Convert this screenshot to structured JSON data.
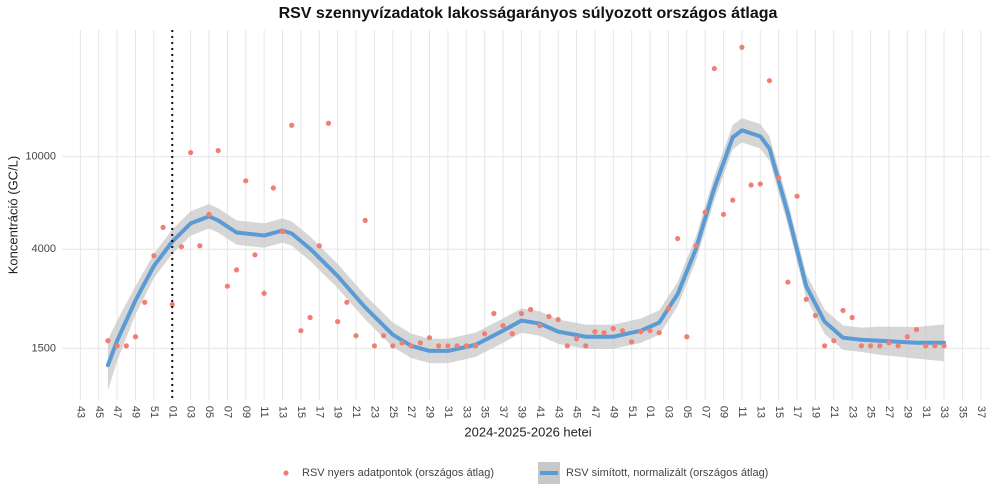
{
  "chart_data": {
    "type": "scatter",
    "title": "RSV szennyvízadatok lakosságarányos súlyozott országos átlaga",
    "x_label": "2024-2025-2026 hetei",
    "y_label": "Koncentráció (GC/L)",
    "log_y": true,
    "grid": true,
    "legend_position": "bottom",
    "vline_x": 10,
    "xlim": [
      -2,
      99
    ],
    "ylim": [
      900,
      35000
    ],
    "yticks": [
      1500,
      4000,
      10000
    ],
    "xticks": [
      {
        "value": 0,
        "label": "43"
      },
      {
        "value": 2,
        "label": "45"
      },
      {
        "value": 4,
        "label": "47"
      },
      {
        "value": 6,
        "label": "49"
      },
      {
        "value": 8,
        "label": "51"
      },
      {
        "value": 10,
        "label": "01"
      },
      {
        "value": 12,
        "label": "03"
      },
      {
        "value": 14,
        "label": "05"
      },
      {
        "value": 16,
        "label": "07"
      },
      {
        "value": 18,
        "label": "09"
      },
      {
        "value": 20,
        "label": "11"
      },
      {
        "value": 22,
        "label": "13"
      },
      {
        "value": 24,
        "label": "15"
      },
      {
        "value": 26,
        "label": "17"
      },
      {
        "value": 28,
        "label": "19"
      },
      {
        "value": 30,
        "label": "21"
      },
      {
        "value": 32,
        "label": "23"
      },
      {
        "value": 34,
        "label": "25"
      },
      {
        "value": 36,
        "label": "27"
      },
      {
        "value": 38,
        "label": "29"
      },
      {
        "value": 40,
        "label": "31"
      },
      {
        "value": 42,
        "label": "33"
      },
      {
        "value": 44,
        "label": "35"
      },
      {
        "value": 46,
        "label": "37"
      },
      {
        "value": 48,
        "label": "39"
      },
      {
        "value": 50,
        "label": "41"
      },
      {
        "value": 52,
        "label": "43"
      },
      {
        "value": 54,
        "label": "45"
      },
      {
        "value": 56,
        "label": "47"
      },
      {
        "value": 58,
        "label": "49"
      },
      {
        "value": 60,
        "label": "51"
      },
      {
        "value": 62,
        "label": "01"
      },
      {
        "value": 64,
        "label": "03"
      },
      {
        "value": 66,
        "label": "05"
      },
      {
        "value": 68,
        "label": "07"
      },
      {
        "value": 70,
        "label": "09"
      },
      {
        "value": 72,
        "label": "11"
      },
      {
        "value": 74,
        "label": "13"
      },
      {
        "value": 76,
        "label": "15"
      },
      {
        "value": 78,
        "label": "17"
      },
      {
        "value": 80,
        "label": "19"
      },
      {
        "value": 82,
        "label": "21"
      },
      {
        "value": 84,
        "label": "23"
      },
      {
        "value": 86,
        "label": "25"
      },
      {
        "value": 88,
        "label": "27"
      },
      {
        "value": 90,
        "label": "29"
      },
      {
        "value": 92,
        "label": "31"
      },
      {
        "value": 94,
        "label": "33"
      },
      {
        "value": 96,
        "label": "35"
      },
      {
        "value": 98,
        "label": "37"
      }
    ],
    "series": [
      {
        "name": "RSV nyers adatpontok (országos átlag)",
        "type": "scatter",
        "color": "#f07f72",
        "x": [
          3,
          4,
          5,
          6,
          7,
          8,
          9,
          10,
          11,
          12,
          13,
          14,
          15,
          16,
          17,
          18,
          19,
          20,
          21,
          22,
          23,
          24,
          25,
          26,
          27,
          28,
          29,
          30,
          31,
          32,
          33,
          34,
          35,
          36,
          37,
          38,
          39,
          40,
          41,
          42,
          43,
          44,
          45,
          46,
          47,
          48,
          49,
          50,
          51,
          52,
          53,
          54,
          55,
          56,
          57,
          58,
          59,
          60,
          61,
          62,
          63,
          64,
          65,
          66,
          67,
          68,
          69,
          70,
          71,
          72,
          73,
          74,
          75,
          76,
          77,
          78,
          79,
          80,
          81,
          82,
          83,
          84,
          85,
          86,
          87,
          88,
          89,
          90,
          91,
          92,
          93,
          94
        ],
        "values": [
          1618,
          1538,
          1538,
          1683,
          2366,
          3750,
          4966,
          2317,
          4102,
          10410,
          4140,
          5650,
          10620,
          2775,
          3260,
          7870,
          3785,
          2587,
          7330,
          4768,
          13640,
          1787,
          2036,
          4140,
          13910,
          1954,
          2366,
          1700,
          5320,
          1538,
          1700,
          1538,
          1585,
          1538,
          1585,
          1667,
          1538,
          1538,
          1538,
          1538,
          1538,
          1734,
          2118,
          1879,
          1734,
          2118,
          2204,
          1879,
          2056,
          1995,
          1538,
          1650,
          1538,
          1770,
          1752,
          1824,
          1787,
          1600,
          1770,
          1787,
          1752,
          2228,
          4446,
          1683,
          4140,
          5770,
          23900,
          5650,
          6500,
          29500,
          7550,
          7630,
          21200,
          8110,
          2890,
          6760,
          2438,
          2076,
          1538,
          1618,
          2183,
          2036,
          1538,
          1538,
          1538,
          1585,
          1538,
          1683,
          1805,
          1538,
          1538,
          1538
        ]
      },
      {
        "name": "RSV simított, normalizált (országos átlag)",
        "type": "line",
        "color": "#5b9bd5",
        "band_color": "#c8c8c8",
        "x": [
          3,
          4,
          6,
          8,
          10,
          12,
          14,
          15,
          17,
          20,
          22,
          23,
          25,
          28,
          31,
          34,
          36,
          38,
          40,
          43,
          46,
          48,
          50,
          52,
          55,
          58,
          61,
          63,
          65,
          67,
          69,
          71,
          72,
          74,
          75,
          77,
          79,
          81,
          83,
          85,
          87,
          91,
          94
        ],
        "values": [
          1271,
          1618,
          2414,
          3390,
          4313,
          5165,
          5538,
          5320,
          4720,
          4581,
          4815,
          4674,
          4020,
          3069,
          2250,
          1717,
          1538,
          1463,
          1463,
          1553,
          1787,
          1975,
          1917,
          1770,
          1683,
          1683,
          1787,
          1936,
          2563,
          4020,
          7330,
          12100,
          12970,
          12220,
          10830,
          5710,
          2775,
          1954,
          1667,
          1633,
          1618,
          1585,
          1585
        ],
        "lower": [
          989,
          1324,
          2099,
          3005,
          3824,
          4579,
          4910,
          4716,
          4184,
          4061,
          4269,
          4144,
          3564,
          2721,
          1995,
          1522,
          1363,
          1297,
          1297,
          1377,
          1584,
          1751,
          1699,
          1569,
          1492,
          1492,
          1584,
          1716,
          2272,
          3564,
          6498,
          10727,
          11498,
          10833,
          9601,
          5062,
          2460,
          1732,
          1478,
          1448,
          1407,
          1355,
          1321
        ],
        "upper": [
          1633,
          1977,
          2776,
          3824,
          4865,
          5826,
          6247,
          6001,
          5324,
          5167,
          5431,
          5272,
          4535,
          3462,
          2538,
          1937,
          1735,
          1650,
          1650,
          1752,
          2016,
          2228,
          2162,
          1997,
          1898,
          1898,
          2016,
          2184,
          2891,
          4535,
          8268,
          13649,
          14630,
          13784,
          12216,
          6441,
          3130,
          2204,
          1880,
          1842,
          1861,
          1854,
          1902
        ]
      }
    ]
  }
}
